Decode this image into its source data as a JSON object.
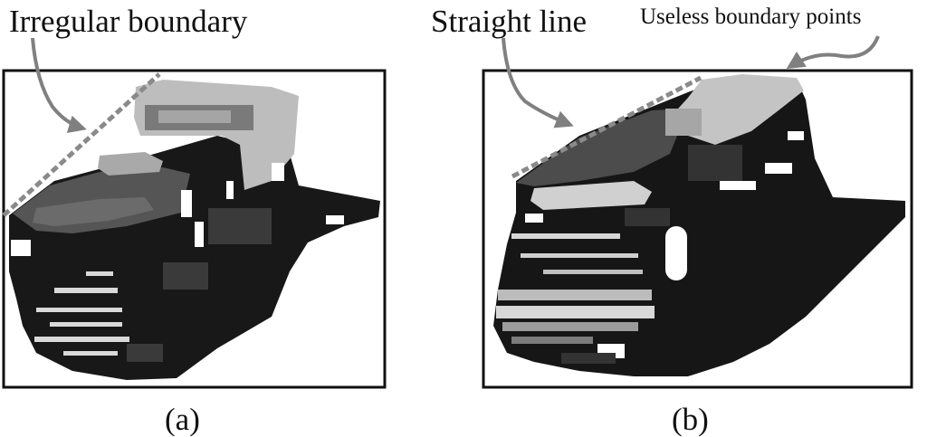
{
  "figure": {
    "panel_a": {
      "annotation": "Irregular boundary",
      "caption": "(a)"
    },
    "panel_b": {
      "annotation_line": "Straight line",
      "annotation_points": "Useless boundary points",
      "caption": "(b)"
    },
    "colors": {
      "ink": "#111111",
      "arrow": "#808080",
      "dashed_line": "#8a8a8a",
      "vehicle_dark": "#161616",
      "vehicle_mid": "#4a4a4a",
      "vehicle_light": "#b8b8b8"
    }
  }
}
